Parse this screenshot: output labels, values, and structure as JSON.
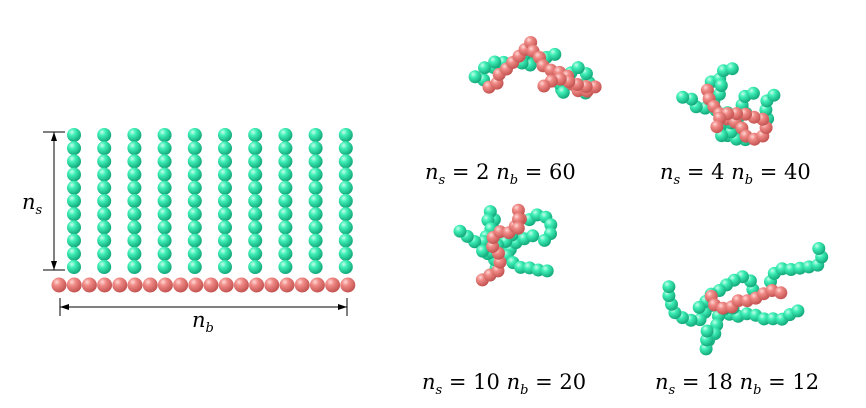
{
  "colors": {
    "backbone": "#ee7b78",
    "sidechain": "#35e6ad",
    "line": "#000000"
  },
  "schematic": {
    "ns_label": {
      "main": "n",
      "sub": "s"
    },
    "nb_label": {
      "main": "n",
      "sub": "b"
    }
  },
  "panels": [
    {
      "ns": "2",
      "nb": "60"
    },
    {
      "ns": "4",
      "nb": "40"
    },
    {
      "ns": "10",
      "nb": "20"
    },
    {
      "ns": "18",
      "nb": "12"
    }
  ]
}
